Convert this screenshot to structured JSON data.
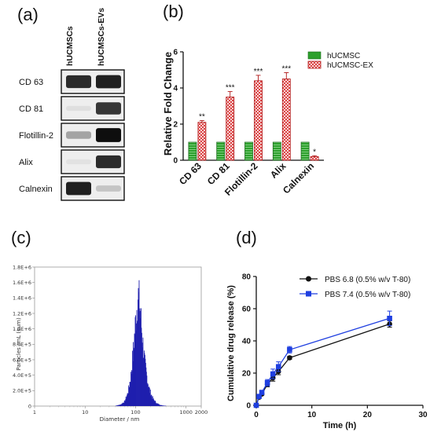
{
  "panel_labels": [
    "(a)",
    "(b)",
    "(c)",
    "(d)"
  ],
  "colors": {
    "hucmsc": "#2ca02c",
    "ex": "#d62728",
    "histogram": "#1f1fae",
    "pbs68": "#111111",
    "pbs74": "#1f3fe0"
  },
  "western_blot": {
    "lane_labels": [
      "hUCMSCs",
      "hUCMSCs-EVs"
    ],
    "rows": [
      {
        "label": "CD 63",
        "bands": [
          0.85,
          0.9
        ]
      },
      {
        "label": "CD 81",
        "bands": [
          0.03,
          0.8
        ]
      },
      {
        "label": "Flotillin-2",
        "bands": [
          0.3,
          0.98
        ]
      },
      {
        "label": "Alix",
        "bands": [
          0.02,
          0.85
        ]
      },
      {
        "label": "Calnexin",
        "bands": [
          0.9,
          0.15
        ]
      }
    ]
  },
  "chart_data": [
    {
      "type": "bar",
      "categories": [
        "CD 63",
        "CD 81",
        "Flotillin-2",
        "Alix",
        "Calnexin"
      ],
      "series": [
        {
          "name": "hUCMSC",
          "values": [
            1,
            1,
            1,
            1,
            1
          ],
          "errors": [
            0,
            0,
            0,
            0,
            0
          ]
        },
        {
          "name": "hUCMSC-EX",
          "values": [
            2.1,
            3.5,
            4.4,
            4.5,
            0.2
          ],
          "errors": [
            0.1,
            0.3,
            0.3,
            0.35,
            0.05
          ]
        }
      ],
      "significance": [
        "**",
        "***",
        "***",
        "***",
        "*"
      ],
      "ylabel": "Relative Fold Change",
      "ylim": [
        0,
        6
      ],
      "yticks": [
        "0",
        "2",
        "4",
        "6"
      ],
      "legend_position": "top-right"
    },
    {
      "type": "area",
      "ylabel": "Particles /mL (sum)",
      "xlabel": "Diameter / nm",
      "x_scale": "log",
      "xlim": [
        1,
        2000
      ],
      "xticks": [
        "1",
        "10",
        "100",
        "1000",
        "2000"
      ],
      "ylim": [
        0,
        1800000
      ],
      "yticks": [
        "0",
        "2.0E+5",
        "4.0E+5",
        "6.0E+5",
        "8.0E+5",
        "1.0E+6",
        "1.2E+6",
        "1.4E+6",
        "1.6E+6",
        "1.8E+6"
      ],
      "x": [
        40,
        50,
        60,
        70,
        80,
        90,
        100,
        110,
        120,
        130,
        140,
        150,
        170,
        190,
        220,
        260,
        320,
        400
      ],
      "y": [
        5000,
        20000,
        60000,
        180000,
        400000,
        750000,
        1150000,
        1440000,
        1300000,
        1000000,
        760000,
        560000,
        330000,
        190000,
        90000,
        35000,
        10000,
        3000
      ]
    },
    {
      "type": "line",
      "xlabel": "Time (h)",
      "ylabel": "Cumulative drug release (%)",
      "xlim": [
        0,
        30
      ],
      "ylim": [
        0,
        80
      ],
      "xticks": [
        "0",
        "10",
        "20",
        "30"
      ],
      "yticks": [
        "0",
        "20",
        "40",
        "60",
        "80"
      ],
      "legend_position": "top-right",
      "series": [
        {
          "name": "PBS 6.8 (0.5% w/v T-80)",
          "marker": "circle",
          "x": [
            0,
            0.5,
            1,
            2,
            3,
            4,
            6,
            24
          ],
          "y": [
            0,
            5,
            7,
            13,
            17,
            21,
            29.5,
            50.5
          ],
          "err": [
            0,
            0.5,
            0.8,
            1.5,
            2,
            2,
            1,
            2
          ]
        },
        {
          "name": "PBS 7.4 (0.5% w/v T-80)",
          "marker": "square",
          "x": [
            0,
            0.5,
            1,
            2,
            3,
            4,
            6,
            24
          ],
          "y": [
            0,
            5.5,
            8,
            14,
            19.5,
            24,
            34.5,
            54
          ],
          "err": [
            0,
            0.6,
            1,
            2,
            3,
            3,
            2,
            4.5
          ]
        }
      ]
    }
  ]
}
